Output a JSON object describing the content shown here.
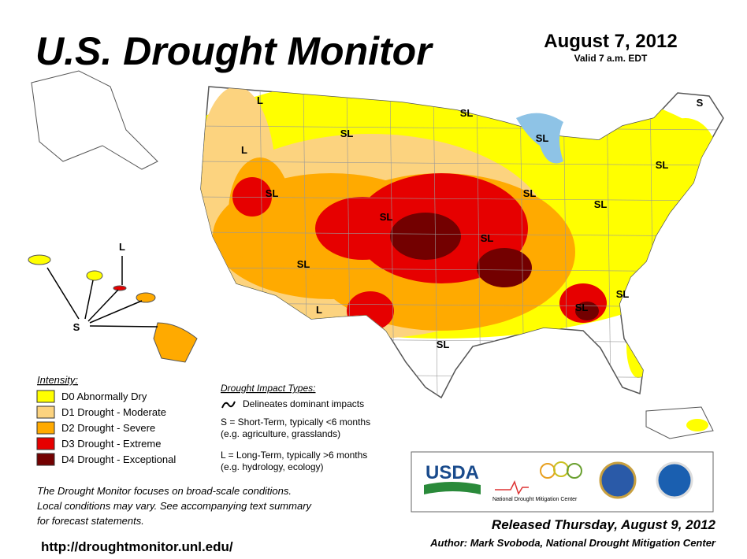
{
  "header": {
    "title": "U.S. Drought Monitor",
    "date": "August 7, 2012",
    "valid": "Valid 7 a.m. EDT"
  },
  "legend": {
    "title": "Intensity:",
    "items": [
      {
        "label": "D0 Abnormally Dry",
        "color": "#ffff00"
      },
      {
        "label": "D1 Drought - Moderate",
        "color": "#fcd37f"
      },
      {
        "label": "D2 Drought - Severe",
        "color": "#ffaa00"
      },
      {
        "label": "D3 Drought - Extreme",
        "color": "#e60000"
      },
      {
        "label": "D4 Drought - Exceptional",
        "color": "#730000"
      }
    ]
  },
  "impact": {
    "title": "Drought Impact Types:",
    "delineates": "Delineates dominant impacts",
    "short": "S = Short-Term, typically <6 months",
    "short_eg": "(e.g. agriculture, grasslands)",
    "long": "L = Long-Term, typically >6 months",
    "long_eg": "(e.g. hydrology, ecology)"
  },
  "note": [
    "The Drought Monitor focuses on broad-scale conditions.",
    "Local conditions may vary. See accompanying text summary",
    "for forecast statements."
  ],
  "footer": {
    "released": "Released Thursday, August 9, 2012",
    "author": "Author: Mark Svoboda, National Drought Mitigation Center",
    "url": "http://droughtmonitor.unl.edu/"
  },
  "logos": {
    "usda": "USDA",
    "ndmc": "National Drought Mitigation Center"
  },
  "map_labels": [
    "L",
    "SL",
    "L",
    "SL",
    "SL",
    "SL",
    "SL",
    "SL",
    "SL",
    "SL",
    "L",
    "SL",
    "SL",
    "SL",
    "SL",
    "SL",
    "S",
    "L",
    "S"
  ]
}
